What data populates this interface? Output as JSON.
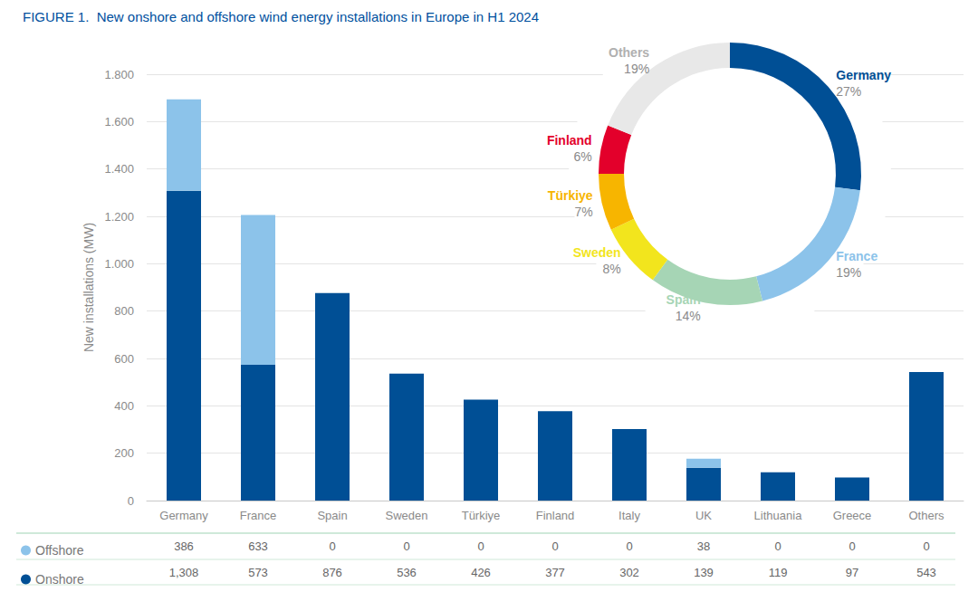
{
  "chart_data": [
    {
      "type": "bar",
      "title": "FIGURE 1.  New onshore and offshore wind energy installations in Europe in H1 2024",
      "y_label": "New installations (MW)",
      "categories": [
        "Germany",
        "France",
        "Spain",
        "Sweden",
        "Türkiye",
        "Finland",
        "Italy",
        "UK",
        "Lithuania",
        "Greece",
        "Others"
      ],
      "series": [
        {
          "name": "Offshore",
          "color": "#8cc3ea",
          "values": [
            386,
            633,
            0,
            0,
            0,
            0,
            0,
            38,
            0,
            0,
            0
          ],
          "value_labels": [
            "386",
            "633",
            "0",
            "0",
            "0",
            "0",
            "0",
            "38",
            "0",
            "0",
            "0"
          ]
        },
        {
          "name": "Onshore",
          "color": "#004f95",
          "values": [
            1308,
            573,
            876,
            536,
            426,
            377,
            302,
            139,
            119,
            97,
            543
          ],
          "value_labels": [
            "1,308",
            "573",
            "876",
            "536",
            "426",
            "377",
            "302",
            "139",
            "119",
            "97",
            "543"
          ]
        }
      ],
      "stacked": true,
      "ylim": [
        0,
        1800
      ],
      "yticks": [
        0,
        200,
        400,
        600,
        800,
        {
          "value": 1000,
          "label": "1.000"
        },
        {
          "value": 1200,
          "label": "1.200"
        },
        {
          "value": 1400,
          "label": "1.400"
        },
        {
          "value": 1600,
          "label": "1.600"
        },
        {
          "value": 1800,
          "label": "1.800"
        }
      ],
      "grid": true,
      "legend": "bottom"
    },
    {
      "type": "pie",
      "categories": [
        "Germany",
        "France",
        "Spain",
        "Sweden",
        "Türkiye",
        "Finland",
        "Others"
      ],
      "values": [
        27,
        19,
        14,
        8,
        7,
        6,
        19
      ],
      "value_labels": [
        "27%",
        "19%",
        "14%",
        "8%",
        "7%",
        "6%",
        "19%"
      ],
      "colors": [
        "#004f95",
        "#8cc3ea",
        "#a6d5b5",
        "#f2e51d",
        "#f7b500",
        "#e3002b",
        "#e8e8e8"
      ]
    }
  ]
}
